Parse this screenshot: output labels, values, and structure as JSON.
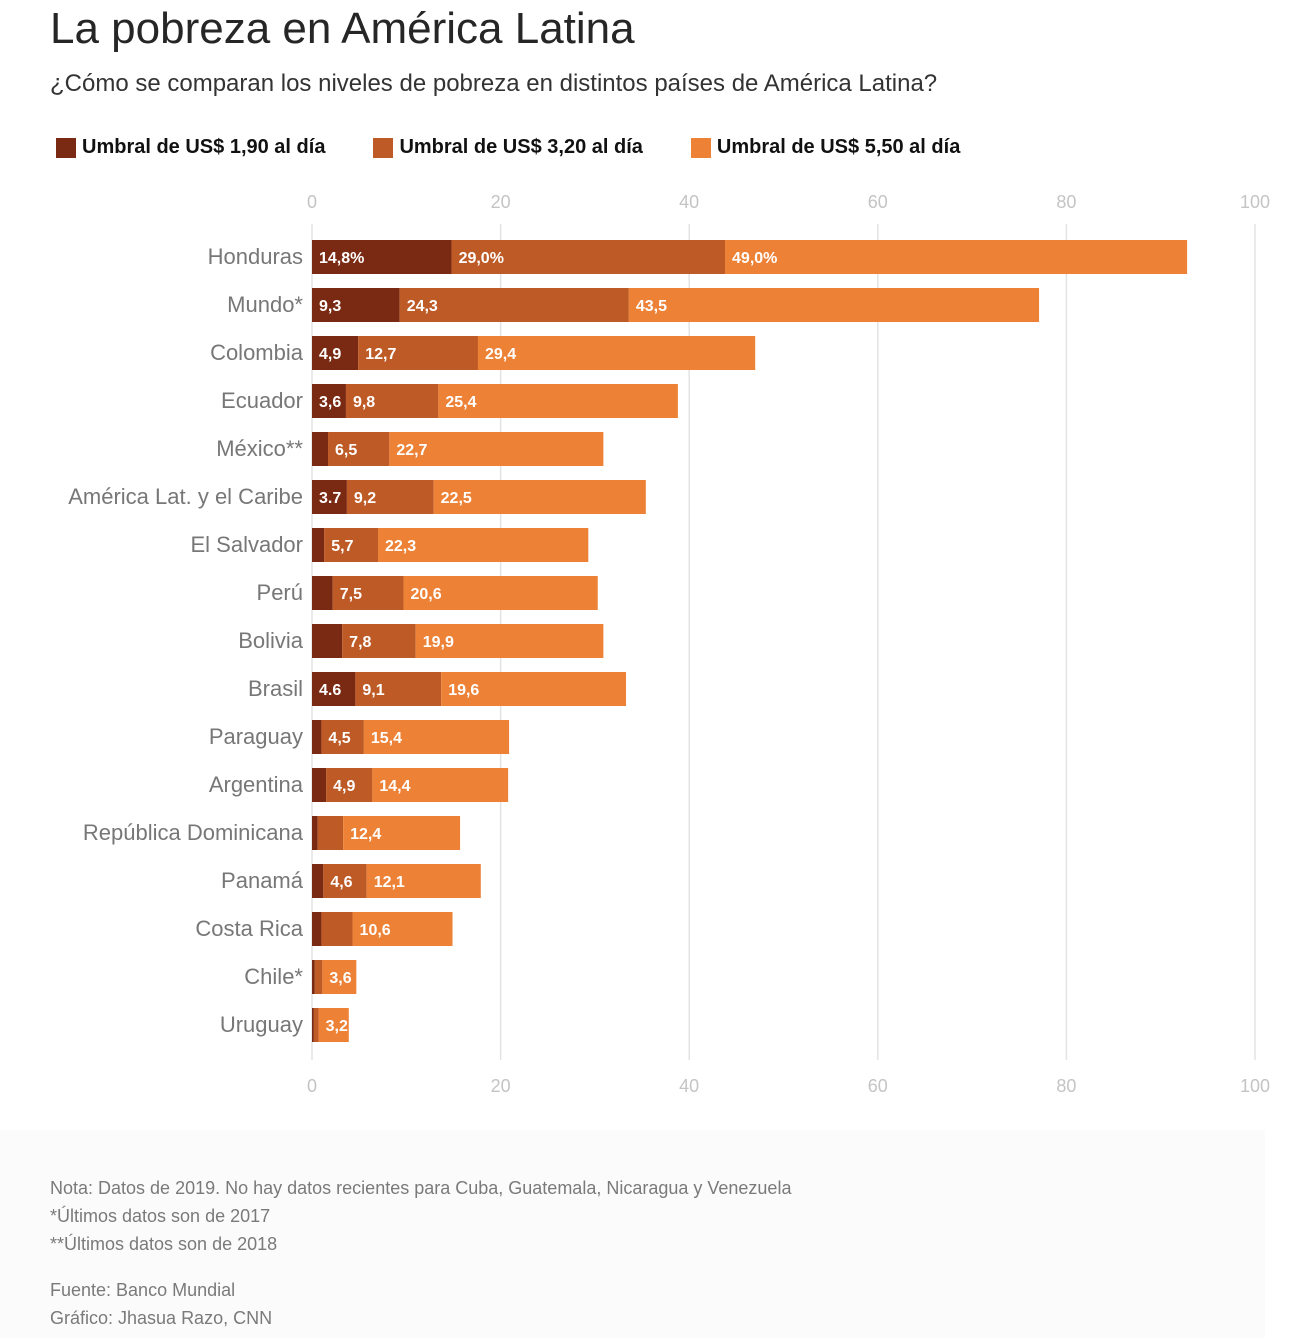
{
  "title": "La pobreza en América Latina",
  "subtitle": "¿Cómo se comparan los niveles de pobreza en distintos países de América Latina?",
  "legend": [
    {
      "label": "Umbral de US$ 1,90 al día",
      "color": "#7a2a12"
    },
    {
      "label": "Umbral de US$ 3,20 al día",
      "color": "#bd5a25"
    },
    {
      "label": "Umbral de US$ 5,50 al día",
      "color": "#ed8136"
    }
  ],
  "chart_data": {
    "type": "bar",
    "orientation": "horizontal",
    "stacked": true,
    "xlim": [
      0,
      100
    ],
    "xticks": [
      "0",
      "20",
      "40",
      "60",
      "80",
      "100"
    ],
    "categories": [
      "Honduras",
      "Mundo*",
      "Colombia",
      "Ecuador",
      "México**",
      "América Lat. y el Caribe",
      "El Salvador",
      "Perú",
      "Bolivia",
      "Brasil",
      "Paraguay",
      "Argentina",
      "República Dominicana",
      "Panamá",
      "Costa Rica",
      "Chile*",
      "Uruguay"
    ],
    "series": [
      {
        "name": "Umbral de US$ 1,90 al día",
        "values": [
          14.8,
          9.3,
          4.9,
          3.6,
          1.7,
          3.7,
          1.3,
          2.2,
          3.2,
          4.6,
          1.0,
          1.5,
          0.6,
          1.2,
          1.0,
          0.3,
          0.2
        ],
        "labels": [
          "14,8%",
          "9,3",
          "4,9",
          "3,6",
          "",
          "3.7",
          "",
          "",
          "",
          "4.6",
          "",
          "",
          "",
          "",
          "",
          "",
          ""
        ]
      },
      {
        "name": "Umbral de US$ 3,20 al día",
        "values": [
          29.0,
          24.3,
          12.7,
          9.8,
          6.5,
          9.2,
          5.7,
          7.5,
          7.8,
          9.1,
          4.5,
          4.9,
          2.7,
          4.6,
          3.3,
          0.8,
          0.5
        ],
        "labels": [
          "29,0%",
          "24,3",
          "12,7",
          "9,8",
          "6,5",
          "9,2",
          "5,7",
          "7,5",
          "7,8",
          "9,1",
          "4,5",
          "4,9",
          "",
          "4,6",
          "",
          "",
          ""
        ]
      },
      {
        "name": "Umbral de US$ 5,50 al día",
        "values": [
          49.0,
          43.5,
          29.4,
          25.4,
          22.7,
          22.5,
          22.3,
          20.6,
          19.9,
          19.6,
          15.4,
          14.4,
          12.4,
          12.1,
          10.6,
          3.6,
          3.2
        ],
        "labels": [
          "49,0%",
          "43,5",
          "29,4",
          "25,4",
          "22,7",
          "22,5",
          "22,3",
          "20,6",
          "19,9",
          "19,6",
          "15,4",
          "14,4",
          "12,4",
          "12,1",
          "10,6",
          "3,6",
          "3,2"
        ]
      }
    ]
  },
  "notes": [
    "Nota: Datos de 2019. No hay datos recientes para Cuba, Guatemala, Nicaragua y Venezuela",
    "*Últimos datos son de 2017",
    "**Últimos datos son de 2018"
  ],
  "source": "Fuente: Banco Mundial",
  "credit": "Gráfico: Jhasua Razo, CNN"
}
